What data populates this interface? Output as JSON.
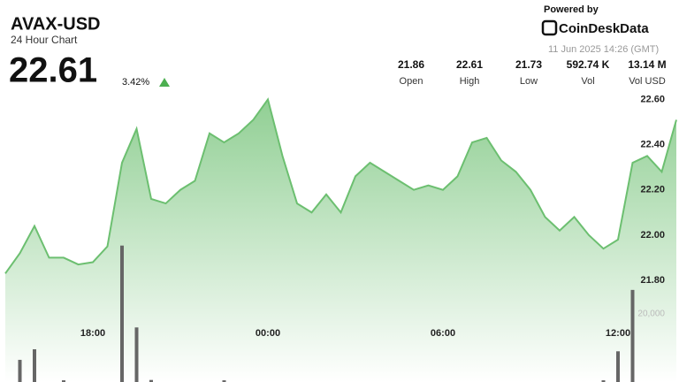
{
  "header": {
    "title": "AVAX-USD",
    "subtitle": "24 Hour Chart",
    "price": "22.61",
    "change": "3.42%",
    "powered_by": "Powered by",
    "brand": "CoinDeskData",
    "timestamp": "11 Jun 2025 14:26 (GMT)",
    "stats": [
      {
        "value": "21.86",
        "label": "Open"
      },
      {
        "value": "22.61",
        "label": "High"
      },
      {
        "value": "21.73",
        "label": "Low"
      },
      {
        "value": "592.74 K",
        "label": "Vol"
      },
      {
        "value": "13.14 M",
        "label": "Vol USD"
      }
    ]
  },
  "chart_data": {
    "type": "area",
    "categories": [
      null,
      null,
      null,
      null,
      null,
      null,
      "18:00",
      null,
      null,
      null,
      null,
      null,
      null,
      null,
      null,
      null,
      null,
      null,
      "00:00",
      null,
      null,
      null,
      null,
      null,
      null,
      null,
      null,
      null,
      null,
      null,
      "06:00",
      null,
      null,
      null,
      null,
      null,
      null,
      null,
      null,
      null,
      null,
      null,
      "12:00",
      null,
      null,
      null,
      null
    ],
    "series": [
      {
        "color": "#6cbf70",
        "values": [
          21.83,
          21.92,
          22.04,
          21.9,
          21.9,
          21.87,
          21.88,
          21.95,
          22.32,
          22.47,
          22.16,
          22.14,
          22.2,
          22.24,
          22.45,
          22.41,
          22.45,
          22.51,
          22.6,
          22.35,
          22.14,
          22.1,
          22.18,
          22.1,
          22.26,
          22.32,
          22.28,
          22.24,
          22.2,
          22.22,
          22.2,
          22.26,
          22.41,
          22.43,
          22.33,
          22.28,
          22.2,
          22.08,
          22.02,
          22.08,
          22.0,
          21.94,
          21.98,
          22.32,
          22.35,
          22.28,
          22.51
        ]
      },
      {
        "type": "bar",
        "axis": "y2",
        "color": "#666666",
        "values": [
          0,
          6500,
          9600,
          0,
          500,
          0,
          0,
          0,
          40000,
          16000,
          600,
          0,
          0,
          0,
          0,
          500,
          0,
          0,
          0,
          0,
          0,
          0,
          0,
          0,
          0,
          0,
          0,
          0,
          0,
          0,
          0,
          0,
          0,
          0,
          0,
          0,
          0,
          0,
          0,
          0,
          0,
          500,
          9000,
          27000,
          0,
          0,
          0
        ]
      }
    ],
    "ylim": [
      21.35,
      23.04
    ],
    "yticks": [
      {
        "value": 21.8,
        "label": "21.80"
      },
      {
        "value": 22.0,
        "label": "22.00"
      },
      {
        "value": 22.2,
        "label": "22.20"
      },
      {
        "value": 22.4,
        "label": "22.40"
      },
      {
        "value": 22.6,
        "label": "22.60"
      }
    ],
    "y2lim": [
      0,
      112000
    ],
    "y2ticks": [
      {
        "value": 20000,
        "label": "20,000"
      }
    ],
    "grid": false
  }
}
